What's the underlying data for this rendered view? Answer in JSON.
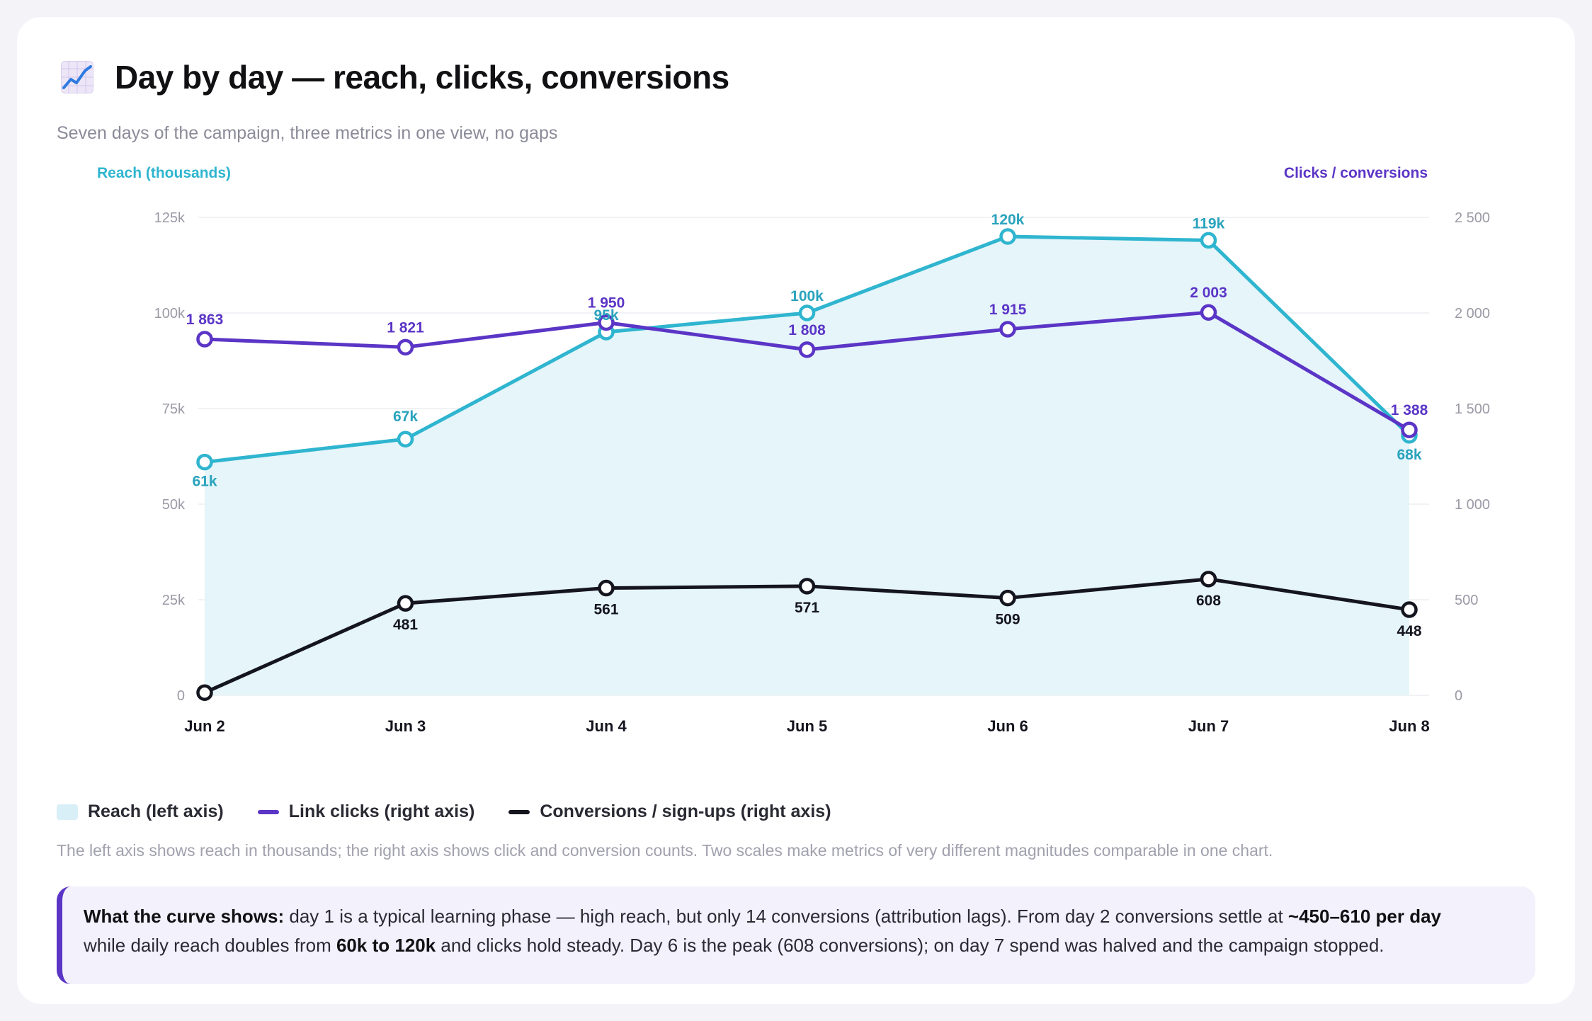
{
  "header": {
    "title": "Day by day — reach, clicks, conversions",
    "subtitle": "Seven days of the campaign, three metrics in one view, no gaps",
    "icon": "chart-increasing-icon"
  },
  "colors": {
    "reach": "#2fb5cf",
    "reach_fill": "#e5f5fa",
    "clicks": "#5b35c6",
    "conversions": "#15151f"
  },
  "chart_data": {
    "type": "line",
    "categories": [
      "Jun 2",
      "Jun 3",
      "Jun 4",
      "Jun 5",
      "Jun 6",
      "Jun 7",
      "Jun 8"
    ],
    "left_axis": {
      "label": "Reach (thousands)",
      "ticks": [
        "0",
        "25k",
        "50k",
        "75k",
        "100k",
        "125k"
      ],
      "tick_values": [
        0,
        25,
        50,
        75,
        100,
        125
      ],
      "ylim": [
        0,
        125
      ]
    },
    "right_axis": {
      "label": "Clicks / conversions",
      "ticks": [
        "0",
        "500",
        "1 000",
        "1 500",
        "2 000",
        "2 500"
      ],
      "tick_values": [
        0,
        500,
        1000,
        1500,
        2000,
        2500
      ],
      "ylim": [
        0,
        2500
      ]
    },
    "series": [
      {
        "name": "Reach (left axis)",
        "axis": "left",
        "style": "area",
        "values": [
          61,
          67,
          95,
          100,
          120,
          119,
          68
        ],
        "labels": [
          "61k",
          "67k",
          "95k",
          "100k",
          "120k",
          "119k",
          "68k"
        ]
      },
      {
        "name": "Link clicks (right axis)",
        "axis": "right",
        "style": "line",
        "values": [
          1863,
          1821,
          1950,
          1808,
          1915,
          2003,
          1388
        ],
        "labels": [
          "1 863",
          "1 821",
          "1 950",
          "1 808",
          "1 915",
          "2 003",
          "1 388"
        ]
      },
      {
        "name": "Conversions / sign-ups (right axis)",
        "axis": "right",
        "style": "line",
        "values": [
          14,
          481,
          561,
          571,
          509,
          608,
          448
        ],
        "labels": [
          "",
          "481",
          "561",
          "571",
          "509",
          "608",
          "448"
        ]
      }
    ],
    "grid": true,
    "legend_position": "bottom-left"
  },
  "legend": {
    "reach": "Reach (left axis)",
    "clicks": "Link clicks (right axis)",
    "conversions": "Conversions / sign-ups (right axis)"
  },
  "note": "The left axis shows reach in thousands; the right axis shows click and conversion counts. Two scales make metrics of very different magnitudes comparable in one chart.",
  "callout": {
    "lead": "What the curve shows:",
    "t1": " day 1 is a typical learning phase — high reach, but only 14 conversions (attribution lags). From day 2 conversions settle at ",
    "b1": "~450–610 per day",
    "t2": " while daily reach doubles from ",
    "b2": "60k to 120k",
    "t3": " and clicks hold steady. Day 6 is the peak (608 conversions); on day 7 spend was halved and the campaign stopped."
  }
}
